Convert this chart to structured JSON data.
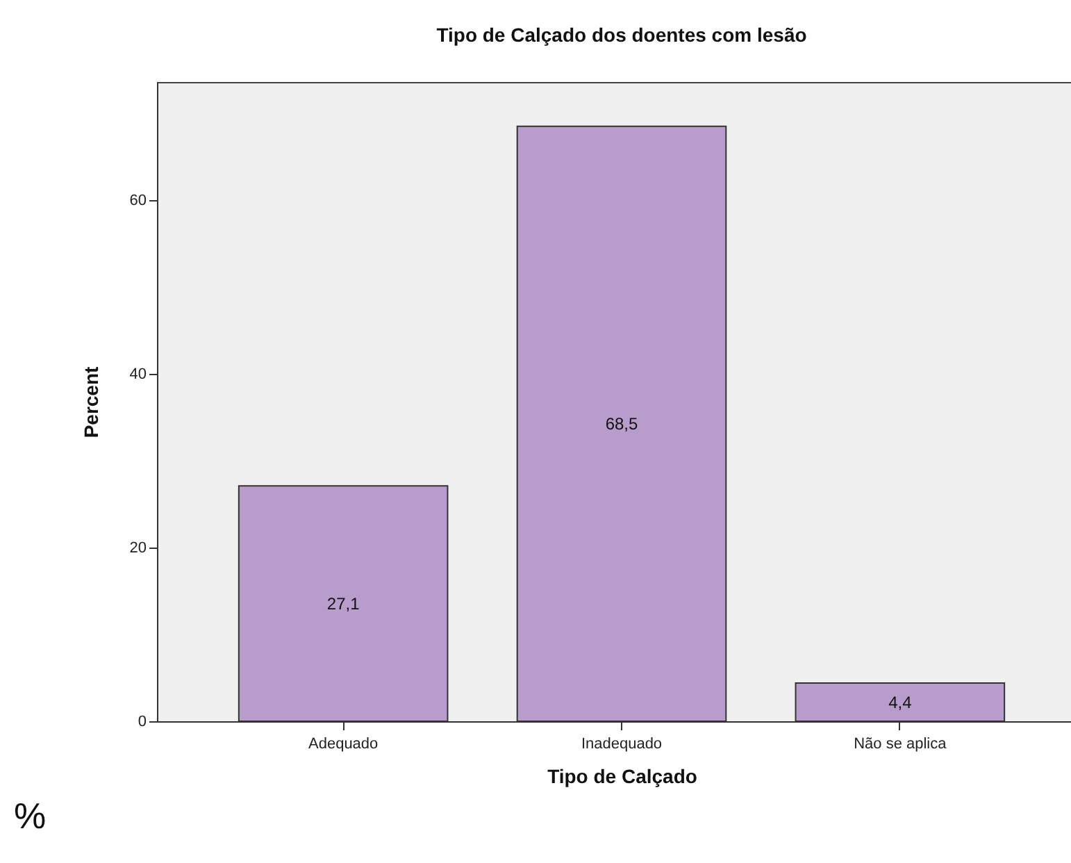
{
  "chart_data": {
    "type": "bar",
    "title": "Tipo de Calçado dos doentes com lesão",
    "xlabel": "Tipo de Calçado",
    "ylabel": "Percent",
    "categories": [
      "Adequado",
      "Inadequado",
      "Não se aplica"
    ],
    "values": [
      27.1,
      68.5,
      4.4
    ],
    "value_labels": [
      "27,1",
      "68,5",
      "4,4"
    ],
    "color": "#b89ccb",
    "ylim": [
      0,
      73.6
    ],
    "yticks": [
      0,
      20,
      40,
      60
    ],
    "annotations": [
      "%"
    ]
  }
}
